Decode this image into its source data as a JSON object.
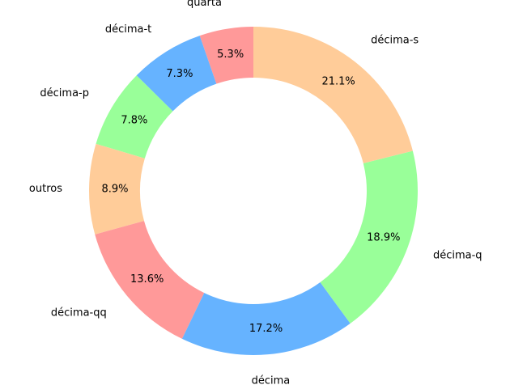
{
  "chart_data": {
    "type": "pie",
    "style": "donut",
    "start": "top, counterclockwise",
    "categories": [
      "quarta",
      "décima-t",
      "décima-p",
      "outros",
      "décima-qq",
      "décima",
      "décima-q",
      "décima-s"
    ],
    "values": [
      5.3,
      7.3,
      7.8,
      8.9,
      13.6,
      17.2,
      18.9,
      21.1
    ],
    "value_labels": [
      "5.3%",
      "7.3%",
      "7.8%",
      "8.9%",
      "13.6%",
      "17.2%",
      "18.9%",
      "21.1%"
    ],
    "colors": [
      "#ff9999",
      "#66b3ff",
      "#99ff99",
      "#ffcc99",
      "#ff9999",
      "#66b3ff",
      "#99ff99",
      "#ffcc99"
    ]
  }
}
